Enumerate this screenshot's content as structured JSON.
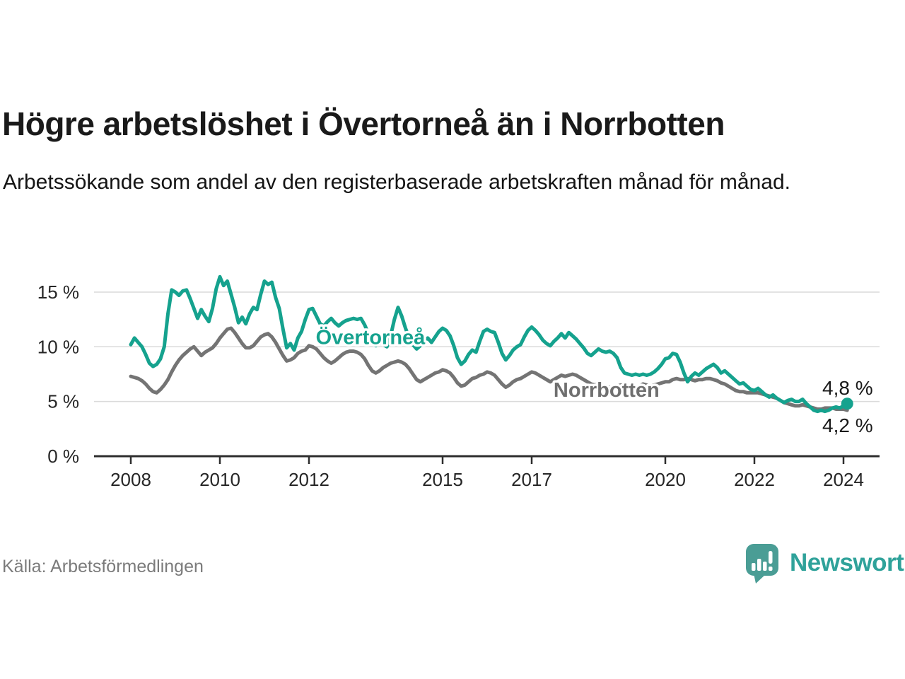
{
  "header": {
    "title": "Högre arbetslöshet i Övertorneå än i Norrbotten",
    "subtitle": "Arbetssökande som andel av den registerbaserade arbetskraften månad för månad."
  },
  "footer": {
    "source": "Källa: Arbetsförmedlingen",
    "brand": "Newsworthy"
  },
  "colors": {
    "accent_teal": "#15a28e",
    "series_gray": "#747474",
    "axis": "#2e2e2e",
    "grid": "#dadada",
    "logo_teal": "#4a9d95",
    "wordmark_teal": "#2fa29a"
  },
  "chart_data": {
    "type": "line",
    "title": "Högre arbetslöshet i Övertorneå än i Norrbotten",
    "subtitle": "Arbetssökande som andel av den registerbaserade arbetskraften månad för månad.",
    "unit": "%",
    "grid": true,
    "legend_position": "inline-labels",
    "x_start_year": 2008,
    "points_per_year": 12,
    "xlim": [
      2007.2,
      2024.9
    ],
    "ylim": [
      0,
      17
    ],
    "x_tick_years": [
      "2008",
      "2010",
      "2012",
      "2015",
      "2017",
      "2020",
      "2022",
      "2024"
    ],
    "y_ticks": [
      {
        "value": 0,
        "label": "0 %"
      },
      {
        "value": 5,
        "label": "5 %"
      },
      {
        "value": 10,
        "label": "10 %"
      },
      {
        "value": 15,
        "label": "15 %"
      }
    ],
    "series": [
      {
        "name": "Övertorneå",
        "color": "#15a28e",
        "label_color": "#15a28e",
        "label_x": 2013.38,
        "label_y": 10.9,
        "end_label": "4,8 %",
        "end_dot": true,
        "values": [
          10.2,
          10.8,
          10.4,
          10.0,
          9.3,
          8.5,
          8.2,
          8.4,
          8.9,
          10.0,
          13.0,
          15.2,
          15.0,
          14.7,
          15.1,
          15.2,
          14.4,
          13.5,
          12.6,
          13.4,
          12.8,
          12.3,
          13.5,
          15.3,
          16.4,
          15.6,
          16.0,
          14.8,
          13.6,
          12.2,
          12.7,
          12.1,
          13.0,
          13.6,
          13.4,
          14.8,
          16.0,
          15.7,
          15.9,
          14.5,
          13.5,
          11.6,
          9.9,
          10.3,
          9.7,
          10.8,
          11.4,
          12.5,
          13.4,
          13.5,
          12.8,
          12.1,
          11.9,
          12.3,
          12.6,
          12.2,
          11.9,
          12.2,
          12.4,
          12.5,
          12.6,
          12.5,
          12.6,
          12.0,
          11.2,
          10.5,
          10.1,
          10.4,
          10.2,
          10.0,
          11.0,
          12.5,
          13.6,
          12.8,
          11.7,
          10.8,
          10.2,
          9.8,
          10.1,
          10.5,
          10.8,
          10.4,
          10.9,
          11.4,
          11.7,
          11.5,
          11.0,
          10.1,
          9.0,
          8.4,
          8.7,
          9.3,
          9.7,
          9.5,
          10.5,
          11.4,
          11.6,
          11.4,
          11.3,
          10.4,
          9.4,
          8.8,
          9.2,
          9.7,
          10.0,
          10.2,
          10.9,
          11.5,
          11.8,
          11.5,
          11.1,
          10.6,
          10.3,
          10.1,
          10.5,
          10.8,
          11.2,
          10.8,
          11.3,
          11.0,
          10.7,
          10.3,
          9.9,
          9.4,
          9.2,
          9.5,
          9.8,
          9.6,
          9.5,
          9.6,
          9.4,
          9.0,
          8.1,
          7.6,
          7.5,
          7.4,
          7.5,
          7.4,
          7.5,
          7.4,
          7.5,
          7.7,
          8.0,
          8.4,
          8.9,
          9.0,
          9.4,
          9.3,
          8.6,
          7.6,
          6.8,
          7.3,
          7.6,
          7.4,
          7.7,
          8.0,
          8.2,
          8.4,
          8.1,
          7.6,
          7.8,
          7.5,
          7.2,
          6.9,
          6.6,
          6.7,
          6.4,
          6.1,
          6.0,
          6.2,
          5.9,
          5.6,
          5.4,
          5.6,
          5.3,
          5.1,
          4.9,
          5.1,
          5.2,
          5.0,
          5.0,
          5.2,
          4.8,
          4.5,
          4.2,
          4.1,
          4.2,
          4.1,
          4.2,
          4.4,
          4.5,
          4.4,
          4.6,
          4.8
        ]
      },
      {
        "name": "Norrbotten",
        "color": "#747474",
        "label_color": "#6f6f6f",
        "label_x": 2018.68,
        "label_y": 6.08,
        "end_label": "4,2 %",
        "end_dot": false,
        "values": [
          7.3,
          7.2,
          7.1,
          6.9,
          6.6,
          6.2,
          5.9,
          5.8,
          6.1,
          6.5,
          7.0,
          7.7,
          8.3,
          8.8,
          9.2,
          9.5,
          9.8,
          10.0,
          9.6,
          9.2,
          9.5,
          9.7,
          9.9,
          10.3,
          10.8,
          11.2,
          11.6,
          11.7,
          11.3,
          10.8,
          10.3,
          9.9,
          9.9,
          10.1,
          10.5,
          10.9,
          11.1,
          11.2,
          10.9,
          10.4,
          9.8,
          9.2,
          8.7,
          8.8,
          9.0,
          9.4,
          9.6,
          9.7,
          10.1,
          10.0,
          9.8,
          9.4,
          9.0,
          8.7,
          8.5,
          8.7,
          9.0,
          9.3,
          9.5,
          9.6,
          9.6,
          9.5,
          9.3,
          8.9,
          8.3,
          7.8,
          7.6,
          7.8,
          8.1,
          8.3,
          8.5,
          8.6,
          8.7,
          8.6,
          8.4,
          8.0,
          7.5,
          7.0,
          6.8,
          7.0,
          7.2,
          7.4,
          7.6,
          7.7,
          7.9,
          7.8,
          7.6,
          7.2,
          6.7,
          6.4,
          6.5,
          6.8,
          7.1,
          7.2,
          7.4,
          7.5,
          7.7,
          7.6,
          7.4,
          7.0,
          6.6,
          6.3,
          6.5,
          6.8,
          7.0,
          7.1,
          7.3,
          7.5,
          7.7,
          7.6,
          7.4,
          7.2,
          7.0,
          6.8,
          7.0,
          7.2,
          7.4,
          7.3,
          7.4,
          7.5,
          7.4,
          7.2,
          7.0,
          6.8,
          6.6,
          6.5,
          6.6,
          6.5,
          6.4,
          6.3,
          6.3,
          6.4,
          6.5,
          6.5,
          6.4,
          6.3,
          6.3,
          6.4,
          6.6,
          6.5,
          6.4,
          6.5,
          6.6,
          6.7,
          6.8,
          6.8,
          7.0,
          7.1,
          7.0,
          7.0,
          7.1,
          7.0,
          6.9,
          7.0,
          7.0,
          7.1,
          7.1,
          7.0,
          6.9,
          6.7,
          6.6,
          6.4,
          6.2,
          6.0,
          5.9,
          5.9,
          5.8,
          5.8,
          5.8,
          5.8,
          5.7,
          5.6,
          5.5,
          5.4,
          5.3,
          5.1,
          4.9,
          4.8,
          4.7,
          4.6,
          4.6,
          4.7,
          4.6,
          4.5,
          4.4,
          4.3,
          4.3,
          4.4,
          4.4,
          4.4,
          4.3,
          4.3,
          4.3,
          4.2
        ]
      }
    ]
  }
}
